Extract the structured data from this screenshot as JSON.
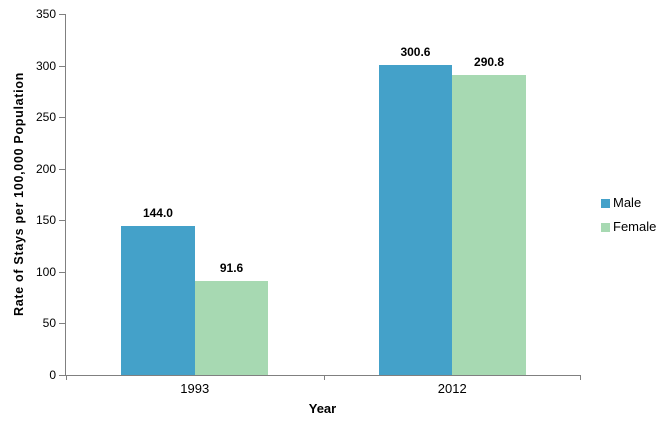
{
  "chart_data": {
    "type": "bar",
    "categories": [
      "1993",
      "2012"
    ],
    "series": [
      {
        "name": "Male",
        "color": "#44A1C9",
        "values": [
          144.0,
          300.6
        ],
        "value_labels": [
          "144.0",
          "300.6"
        ]
      },
      {
        "name": "Female",
        "color": "#A7D9B2",
        "values": [
          91.6,
          290.8
        ],
        "value_labels": [
          "91.6",
          "290.8"
        ]
      }
    ],
    "title": "",
    "xlabel": "Year",
    "ylabel": "Rate of Stays per 100,000 Population",
    "ylim": [
      0,
      350
    ],
    "ytick_interval": 50,
    "yticks": [
      0,
      50,
      100,
      150,
      200,
      250,
      300,
      350
    ],
    "grid": false,
    "legend_position": "right",
    "bar_gap_ratio": 1.5,
    "data_labels_shown": true
  },
  "legend": {
    "items": [
      {
        "label": "Male",
        "color": "#44A1C9"
      },
      {
        "label": "Female",
        "color": "#A7D9B2"
      }
    ]
  },
  "style": {
    "axis_color": "#808080",
    "text_color": "#000000",
    "background": "#FFFFFF"
  }
}
